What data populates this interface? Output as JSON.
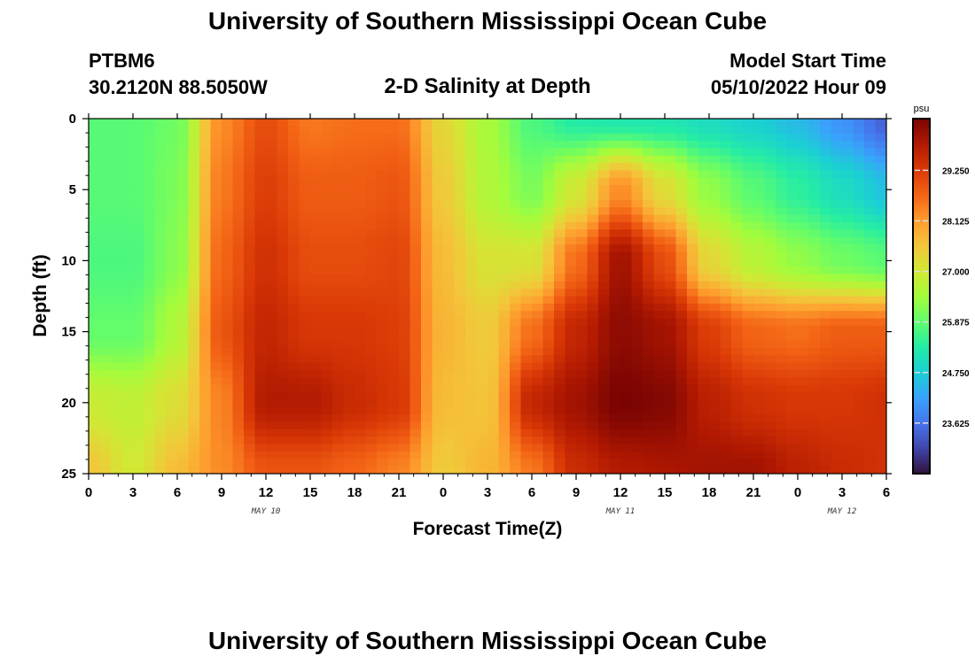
{
  "header": {
    "title_top": "University of Southern Mississippi Ocean Cube",
    "title_bottom": "University of Southern Mississippi Ocean Cube",
    "station": "PTBM6",
    "coords": "30.2120N  88.5050W",
    "model_start_label": "Model Start Time",
    "model_start_value": "05/10/2022 Hour 09"
  },
  "chart_data": {
    "type": "heatmap",
    "title": "2-D Salinity at Depth",
    "xlabel": "Forecast Time(Z)",
    "ylabel": "Depth (ft)",
    "x_range_hours": [
      0,
      54
    ],
    "y_range_ft": [
      0,
      25
    ],
    "y_inverted": true,
    "x_tick_labels": [
      "0",
      "3",
      "6",
      "9",
      "12",
      "15",
      "18",
      "21",
      "0",
      "3",
      "6",
      "9",
      "12",
      "15",
      "18",
      "21",
      "0",
      "3",
      "6"
    ],
    "y_tick_labels": [
      "0",
      "5",
      "10",
      "15",
      "20",
      "25"
    ],
    "y_tick_values": [
      0,
      5,
      10,
      15,
      20,
      25
    ],
    "date_labels": [
      {
        "text": "MAY 10",
        "hour": 12
      },
      {
        "text": "MAY 11",
        "hour": 36
      },
      {
        "text": "MAY 12",
        "hour": 51
      }
    ],
    "colorbar": {
      "unit": "psu",
      "range": [
        22.5,
        30.4
      ],
      "tick_labels": [
        "29.250",
        "28.125",
        "27.000",
        "25.875",
        "24.750",
        "23.625"
      ],
      "tick_values": [
        29.25,
        28.125,
        27.0,
        25.875,
        24.75,
        23.625
      ],
      "colors": [
        "#30123b",
        "#4145ab",
        "#4675ed",
        "#39a2fc",
        "#1bcfd4",
        "#24eca6",
        "#61fc6c",
        "#a4fc3b",
        "#d1e834",
        "#f3c63a",
        "#fe9b2d",
        "#f36315",
        "#d93806",
        "#b11901",
        "#7a0403"
      ]
    },
    "salinity_model": {
      "note": "Approximate salinity field (psu) read from colours; rows = depth 0..25 ft every 5 ft, columns = forecast hour every 3 h from 0 to 54.",
      "hours": [
        0,
        3,
        6,
        9,
        12,
        15,
        18,
        21,
        24,
        27,
        30,
        33,
        36,
        39,
        42,
        45,
        48,
        51,
        54
      ],
      "depths": [
        0,
        5,
        10,
        15,
        20,
        25
      ],
      "values": [
        [
          25.8,
          25.8,
          26.0,
          28.3,
          29.0,
          28.5,
          28.6,
          28.6,
          27.3,
          26.5,
          25.7,
          25.3,
          25.2,
          25.2,
          25.0,
          24.8,
          24.5,
          24.0,
          23.4
        ],
        [
          25.8,
          25.8,
          26.1,
          28.5,
          29.2,
          28.8,
          28.8,
          28.9,
          27.5,
          26.6,
          26.1,
          27.0,
          28.3,
          27.2,
          26.3,
          25.8,
          25.4,
          25.0,
          24.6
        ],
        [
          25.7,
          25.7,
          26.2,
          28.7,
          29.4,
          29.0,
          29.0,
          29.1,
          27.7,
          27.1,
          27.1,
          28.6,
          30.0,
          29.0,
          27.3,
          26.7,
          26.3,
          26.0,
          25.8
        ],
        [
          25.9,
          25.9,
          26.6,
          28.9,
          29.6,
          29.3,
          29.3,
          29.2,
          27.8,
          27.5,
          28.6,
          29.6,
          30.2,
          30.0,
          29.2,
          28.7,
          28.6,
          28.8,
          28.8
        ],
        [
          26.9,
          26.8,
          27.2,
          28.4,
          29.8,
          29.8,
          29.5,
          29.3,
          27.7,
          27.6,
          29.6,
          30.0,
          30.4,
          30.3,
          29.7,
          29.4,
          29.3,
          29.3,
          29.4
        ],
        [
          27.6,
          27.0,
          27.7,
          28.3,
          28.9,
          28.9,
          28.7,
          28.4,
          27.5,
          27.8,
          28.5,
          29.5,
          29.8,
          29.9,
          30.0,
          30.0,
          29.7,
          29.5,
          29.4
        ]
      ]
    }
  }
}
